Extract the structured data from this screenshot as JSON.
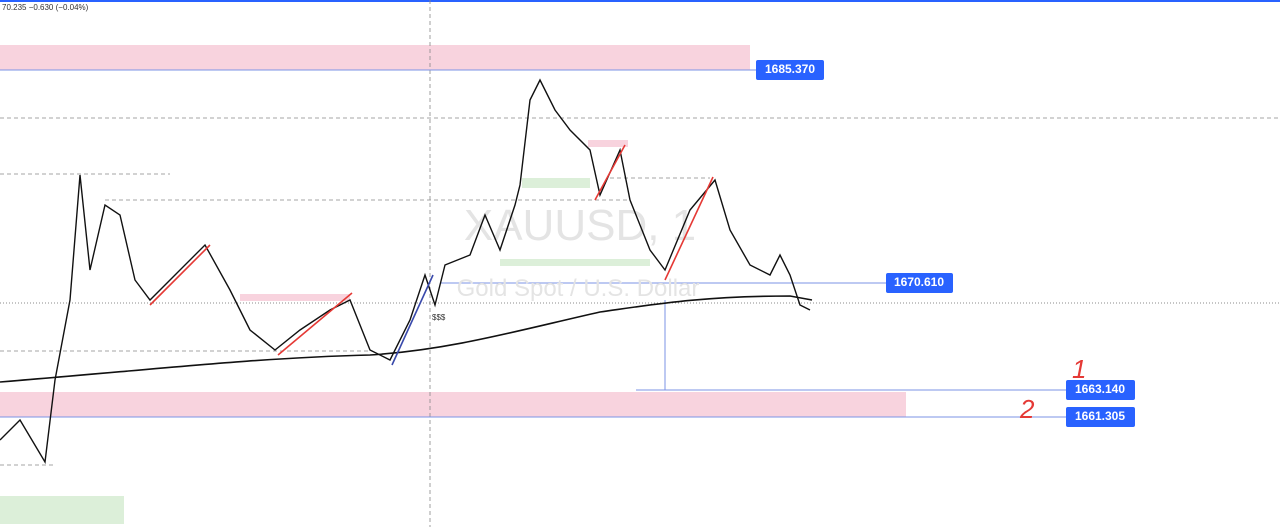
{
  "header": {
    "quote": "70.235 −0.630 (−0.04%)"
  },
  "watermark": {
    "symbol": "XAUUSD, 1",
    "description": "Gold Spot / U.S. Dollar"
  },
  "annotations": {
    "liquidity": "$$$",
    "target_1": "1",
    "target_2": "2"
  },
  "price_labels": [
    "1685.370",
    "1670.610",
    "1663.140",
    "1661.305"
  ]
}
